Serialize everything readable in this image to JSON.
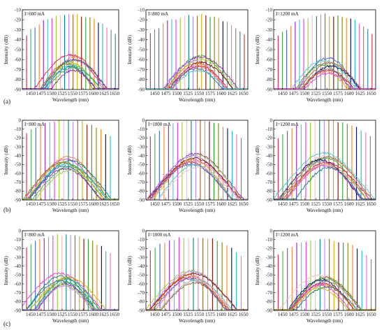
{
  "figure": {
    "row_labels": [
      "(a)",
      "(b)",
      "(c)"
    ]
  },
  "chart_data": [
    {
      "type": "line",
      "row": "(a)",
      "annotation": "I=600 mA",
      "xlabel": "Wavelength (nm)",
      "ylabel": "Intensity (dB)",
      "xlim": [
        1430,
        1660
      ],
      "ylim": [
        -90,
        -10
      ],
      "x_ticks": [
        1450,
        1475,
        1500,
        1525,
        1550,
        1575,
        1600,
        1625,
        1650
      ],
      "y_ticks": [
        -90,
        -80,
        -70,
        -60,
        -50,
        -40,
        -30,
        -20,
        -10
      ],
      "series_summary": {
        "background_curves": 10,
        "background_peak_dB": -55,
        "background_center_nm": 1545,
        "lasing_lines": 22,
        "lasing_range_nm": [
          1440,
          1652
        ],
        "lasing_peak_dB": -15
      }
    },
    {
      "type": "line",
      "row": "(a)",
      "annotation": "I=800 mA",
      "xlabel": "Wavelength (nm)",
      "ylabel": "Intensity (dB)",
      "xlim": [
        1430,
        1660
      ],
      "ylim": [
        -90,
        -10
      ],
      "x_ticks": [
        1450,
        1475,
        1500,
        1525,
        1550,
        1575,
        1600,
        1625,
        1650
      ],
      "y_ticks": [
        -90,
        -80,
        -70,
        -60,
        -50,
        -40,
        -30,
        -20,
        -10
      ],
      "series_summary": {
        "background_curves": 10,
        "background_peak_dB": -55,
        "background_center_nm": 1545,
        "lasing_lines": 23,
        "lasing_range_nm": [
          1440,
          1652
        ],
        "lasing_peak_dB": -15
      }
    },
    {
      "type": "line",
      "row": "(a)",
      "annotation": "I=1200 mA",
      "xlabel": "Wavelength (nm)",
      "ylabel": "Intensity (dB)",
      "xlim": [
        1430,
        1660
      ],
      "ylim": [
        -90,
        -10
      ],
      "x_ticks": [
        1450,
        1475,
        1500,
        1525,
        1550,
        1575,
        1600,
        1625,
        1650
      ],
      "y_ticks": [
        -90,
        -80,
        -70,
        -60,
        -50,
        -40,
        -30,
        -20,
        -10
      ],
      "series_summary": {
        "background_curves": 10,
        "background_peak_dB": -58,
        "background_center_nm": 1550,
        "lasing_lines": 23,
        "lasing_range_nm": [
          1440,
          1652
        ],
        "lasing_peak_dB": -15
      }
    },
    {
      "type": "line",
      "row": "(b)",
      "annotation": "I=800 mA",
      "xlabel": "Wavelength (nm)",
      "ylabel": "Intensity (dB)",
      "xlim": [
        1430,
        1660
      ],
      "ylim": [
        -90,
        0
      ],
      "x_ticks": [
        1450,
        1475,
        1500,
        1525,
        1550,
        1575,
        1600,
        1625,
        1650
      ],
      "y_ticks": [
        -90,
        -80,
        -70,
        -60,
        -50,
        -40,
        -30,
        -20,
        -10,
        0
      ],
      "series_summary": {
        "background_curves": 10,
        "background_peak_dB": -41,
        "background_center_nm": 1535,
        "lasing_lines": 19,
        "lasing_range_nm": [
          1440,
          1640
        ],
        "lasing_peak_dB": 0
      }
    },
    {
      "type": "line",
      "row": "(b)",
      "annotation": "I=1000 mA",
      "xlabel": "Wavelength (nm)",
      "ylabel": "Intensity (dB)",
      "xlim": [
        1430,
        1660
      ],
      "ylim": [
        -90,
        0
      ],
      "x_ticks": [
        1450,
        1475,
        1500,
        1525,
        1550,
        1575,
        1600,
        1625,
        1650
      ],
      "y_ticks": [
        -90,
        -80,
        -70,
        -60,
        -50,
        -40,
        -30,
        -20,
        -10,
        0
      ],
      "series_summary": {
        "background_curves": 10,
        "background_peak_dB": -37,
        "background_center_nm": 1540,
        "lasing_lines": 21,
        "lasing_range_nm": [
          1440,
          1645
        ],
        "lasing_peak_dB": 0
      }
    },
    {
      "type": "line",
      "row": "(b)",
      "annotation": "I=1200 mA",
      "xlabel": "Wavelength (nm)",
      "ylabel": "Intensity (dB)",
      "xlim": [
        1430,
        1660
      ],
      "ylim": [
        -90,
        0
      ],
      "x_ticks": [
        1450,
        1475,
        1500,
        1525,
        1550,
        1575,
        1600,
        1625,
        1650
      ],
      "y_ticks": [
        -90,
        -80,
        -70,
        -60,
        -50,
        -40,
        -30,
        -20,
        -10,
        0
      ],
      "series_summary": {
        "background_curves": 10,
        "background_peak_dB": -37,
        "background_center_nm": 1545,
        "lasing_lines": 21,
        "lasing_range_nm": [
          1440,
          1648
        ],
        "lasing_peak_dB": 0
      }
    },
    {
      "type": "line",
      "row": "(c)",
      "annotation": "I=800 mA",
      "xlabel": "Wavelength (nm)",
      "ylabel": "Intensity (dB)",
      "xlim": [
        1430,
        1660
      ],
      "ylim": [
        -90,
        0
      ],
      "x_ticks": [
        1450,
        1475,
        1500,
        1525,
        1550,
        1575,
        1600,
        1625,
        1650
      ],
      "y_ticks": [
        -90,
        -80,
        -70,
        -60,
        -50,
        -40,
        -30,
        -20,
        -10,
        0
      ],
      "series_summary": {
        "background_curves": 10,
        "background_peak_dB": -48,
        "background_center_nm": 1530,
        "lasing_lines": 20,
        "lasing_range_nm": [
          1440,
          1640
        ],
        "lasing_peak_dB": -5
      }
    },
    {
      "type": "line",
      "row": "(c)",
      "annotation": "I=1000 mA",
      "xlabel": "Wavelength (nm)",
      "ylabel": "Intensity (dB)",
      "xlim": [
        1430,
        1660
      ],
      "ylim": [
        -90,
        0
      ],
      "x_ticks": [
        1450,
        1475,
        1500,
        1525,
        1550,
        1575,
        1600,
        1625,
        1650
      ],
      "y_ticks": [
        -90,
        -80,
        -70,
        -60,
        -50,
        -40,
        -30,
        -20,
        -10,
        0
      ],
      "series_summary": {
        "background_curves": 10,
        "background_peak_dB": -44,
        "background_center_nm": 1535,
        "lasing_lines": 20,
        "lasing_range_nm": [
          1440,
          1645
        ],
        "lasing_peak_dB": -7
      }
    },
    {
      "type": "line",
      "row": "(c)",
      "annotation": "I=1200 mA",
      "xlabel": "Wavelength (nm)",
      "ylabel": "Intensity (dB)",
      "xlim": [
        1430,
        1660
      ],
      "ylim": [
        -90,
        0
      ],
      "x_ticks": [
        1450,
        1475,
        1500,
        1525,
        1550,
        1575,
        1600,
        1625,
        1650
      ],
      "y_ticks": [
        -90,
        -80,
        -70,
        -60,
        -50,
        -40,
        -30,
        -20,
        -10,
        0
      ],
      "series_summary": {
        "background_curves": 10,
        "background_peak_dB": -50,
        "background_center_nm": 1540,
        "lasing_lines": 21,
        "lasing_range_nm": [
          1440,
          1650
        ],
        "lasing_peak_dB": -10
      }
    }
  ],
  "palette": [
    "#e6194b",
    "#3cb44b",
    "#4363d8",
    "#f58231",
    "#911eb4",
    "#46c8c8",
    "#f032e6",
    "#9acd32",
    "#fabebe",
    "#008080",
    "#b388ff",
    "#9a6324",
    "#c8b400",
    "#800000",
    "#2ca02c",
    "#808000",
    "#ff7f0e",
    "#000075",
    "#17becf",
    "#ff69b4",
    "#7f7f7f",
    "#1f77b4",
    "#d62728"
  ]
}
